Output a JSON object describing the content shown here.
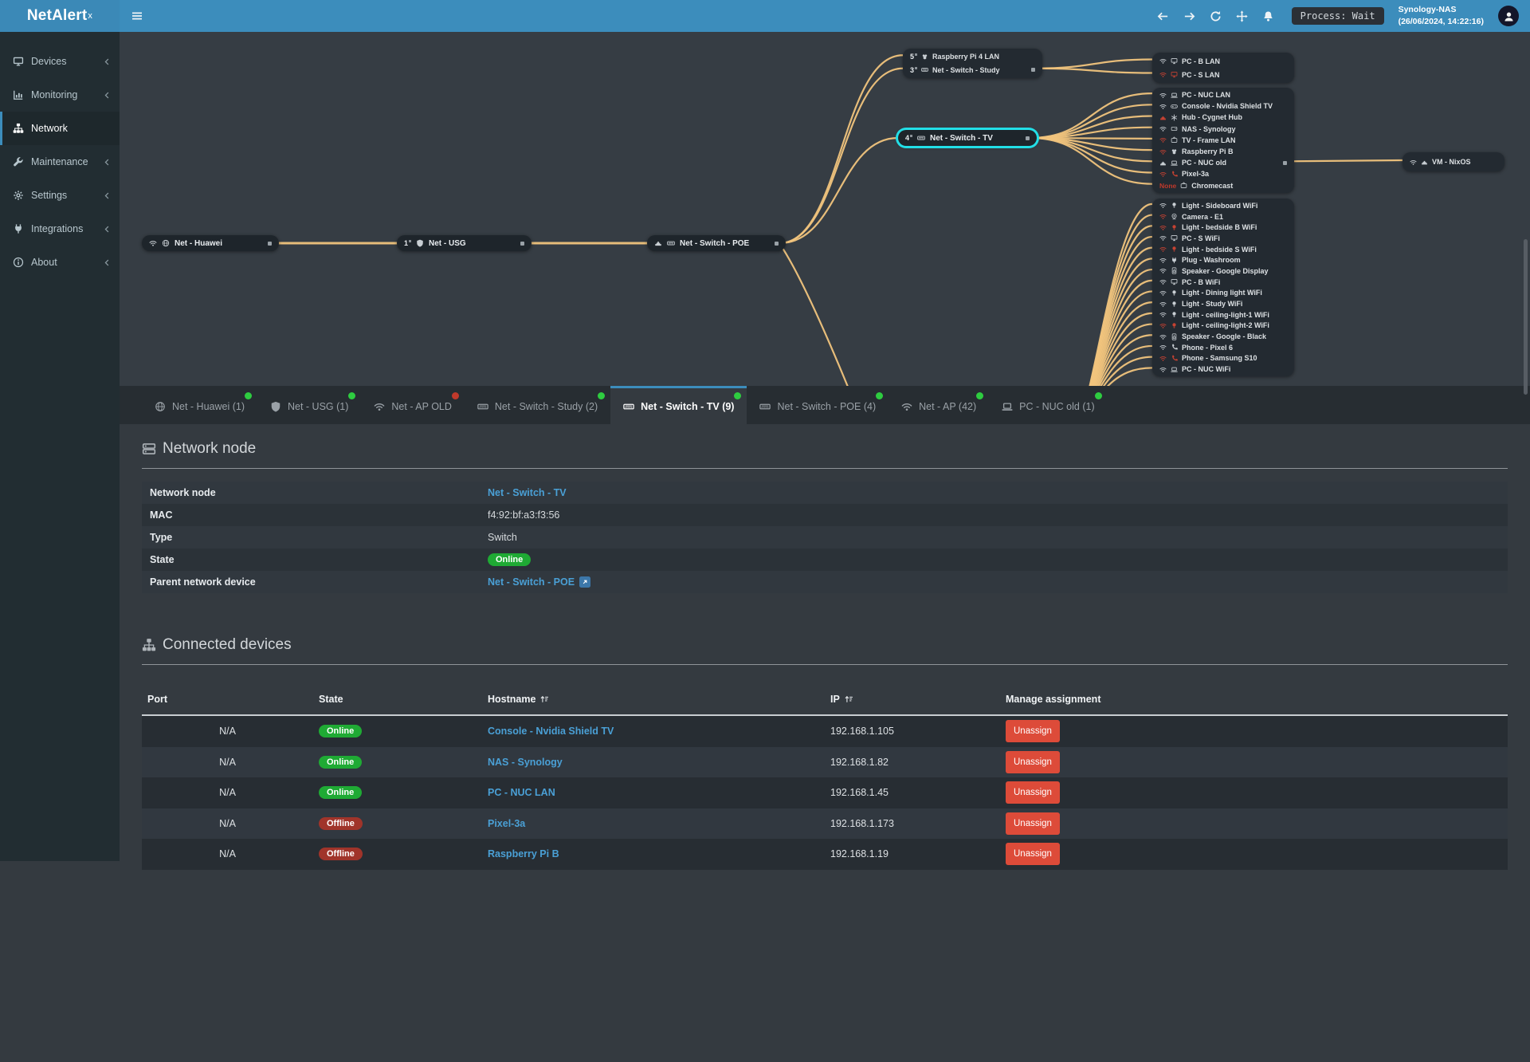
{
  "header": {
    "logo": {
      "text": "NetAlert",
      "sup": "x"
    },
    "nav_icons": [
      {
        "name": "arrow-left"
      },
      {
        "name": "arrow-right"
      },
      {
        "name": "refresh"
      },
      {
        "name": "move"
      },
      {
        "name": "bell"
      }
    ],
    "process_badge": "Process: Wait",
    "host": {
      "name": "Synology-NAS",
      "time": "(26/06/2024, 14:22:16)"
    }
  },
  "sidebar": {
    "items": [
      {
        "id": "devices",
        "label": "Devices",
        "icon": "monitor",
        "chevron": true,
        "active": false
      },
      {
        "id": "monitoring",
        "label": "Monitoring",
        "icon": "chart",
        "chevron": true,
        "active": false
      },
      {
        "id": "network",
        "label": "Network",
        "icon": "sitemap",
        "chevron": false,
        "active": true
      },
      {
        "id": "maintenance",
        "label": "Maintenance",
        "icon": "wrench",
        "chevron": true,
        "active": false
      },
      {
        "id": "settings",
        "label": "Settings",
        "icon": "gear",
        "chevron": true,
        "active": false
      },
      {
        "id": "integrations",
        "label": "Integrations",
        "icon": "plug",
        "chevron": true,
        "active": false
      },
      {
        "id": "about",
        "label": "About",
        "icon": "info",
        "chevron": true,
        "active": false
      }
    ]
  },
  "topology": {
    "nodes": [
      {
        "id": "huawei",
        "icons": [
          {
            "name": "wifi",
            "color": "white"
          },
          {
            "name": "globe",
            "color": "white"
          }
        ],
        "label": "Net - Huawei",
        "port_out": true,
        "highlight": false
      },
      {
        "id": "usg",
        "port_num": "1",
        "icons": [
          {
            "name": "shield",
            "color": "white"
          }
        ],
        "label": "Net - USG",
        "port_out": true,
        "highlight": false
      },
      {
        "id": "poe",
        "icons": [
          {
            "name": "ethernet",
            "color": "white"
          },
          {
            "name": "switch",
            "color": "white"
          }
        ],
        "label": "Net - Switch - POE",
        "port_out": true,
        "highlight": false
      },
      {
        "id": "tv",
        "port_num": "4",
        "icons": [
          {
            "name": "switch",
            "color": "white"
          }
        ],
        "label": "Net - Switch - TV",
        "port_out": true,
        "highlight": true
      }
    ],
    "clusters": [
      {
        "id": "study",
        "rows": [
          {
            "port_num": "5",
            "icons": [
              {
                "name": "raspberry",
                "color": "white"
              }
            ],
            "label": "Raspberry Pi 4 LAN"
          },
          {
            "port_num": "3",
            "icons": [
              {
                "name": "switch",
                "color": "white"
              }
            ],
            "label": "Net - Switch - Study",
            "port_out": true
          }
        ]
      },
      {
        "id": "pcbs",
        "rows": [
          {
            "icons": [
              {
                "name": "wifi",
                "color": "white"
              },
              {
                "name": "monitor",
                "color": "white"
              }
            ],
            "label": "PC - B LAN"
          },
          {
            "icons": [
              {
                "name": "wifi",
                "color": "red"
              },
              {
                "name": "monitor",
                "color": "red"
              }
            ],
            "label": "PC - S LAN"
          }
        ]
      },
      {
        "id": "tvkids",
        "rows": [
          {
            "icons": [
              {
                "name": "wifi",
                "color": "white"
              },
              {
                "name": "laptop",
                "color": "white"
              }
            ],
            "label": "PC - NUC LAN"
          },
          {
            "icons": [
              {
                "name": "wifi",
                "color": "white"
              },
              {
                "name": "gamepad",
                "color": "white"
              }
            ],
            "label": "Console - Nvidia Shield TV"
          },
          {
            "icons": [
              {
                "name": "ethernet",
                "color": "red"
              },
              {
                "name": "hub",
                "color": "white"
              }
            ],
            "label": "Hub - Cygnet Hub"
          },
          {
            "icons": [
              {
                "name": "wifi",
                "color": "white"
              },
              {
                "name": "nas",
                "color": "white"
              }
            ],
            "label": "NAS - Synology"
          },
          {
            "icons": [
              {
                "name": "wifi",
                "color": "red"
              },
              {
                "name": "tv",
                "color": "white"
              }
            ],
            "label": "TV - Frame LAN"
          },
          {
            "icons": [
              {
                "name": "wifi",
                "color": "red"
              },
              {
                "name": "raspberry",
                "color": "white"
              }
            ],
            "label": "Raspberry Pi B"
          },
          {
            "icons": [
              {
                "name": "ethernet",
                "color": "white"
              },
              {
                "name": "laptop",
                "color": "white"
              }
            ],
            "label": "PC - NUC old",
            "port_out": true
          },
          {
            "icons": [
              {
                "name": "wifi",
                "color": "red"
              },
              {
                "name": "phone",
                "color": "red"
              }
            ],
            "label": "Pixel-3a"
          },
          {
            "prefix": "None",
            "icons": [
              {
                "name": "tv",
                "color": "white"
              }
            ],
            "label": "Chromecast"
          }
        ]
      },
      {
        "id": "lights",
        "rows": [
          {
            "icons": [
              {
                "name": "wifi",
                "color": "white"
              },
              {
                "name": "bulb",
                "color": "white"
              }
            ],
            "label": "Light - Sideboard WiFi"
          },
          {
            "icons": [
              {
                "name": "wifi",
                "color": "red"
              },
              {
                "name": "camera",
                "color": "white"
              }
            ],
            "label": "Camera - E1"
          },
          {
            "icons": [
              {
                "name": "wifi",
                "color": "red"
              },
              {
                "name": "bulb",
                "color": "red"
              }
            ],
            "label": "Light - bedside B WiFi"
          },
          {
            "icons": [
              {
                "name": "wifi",
                "color": "white"
              },
              {
                "name": "monitor",
                "color": "white"
              }
            ],
            "label": "PC - S WiFi"
          },
          {
            "icons": [
              {
                "name": "wifi",
                "color": "red"
              },
              {
                "name": "bulb",
                "color": "red"
              }
            ],
            "label": "Light - bedside S WiFi"
          },
          {
            "icons": [
              {
                "name": "wifi",
                "color": "white"
              },
              {
                "name": "plug",
                "color": "white"
              }
            ],
            "label": "Plug - Washroom"
          },
          {
            "icons": [
              {
                "name": "wifi",
                "color": "white"
              },
              {
                "name": "speaker",
                "color": "white"
              }
            ],
            "label": "Speaker - Google Display"
          },
          {
            "icons": [
              {
                "name": "wifi",
                "color": "white"
              },
              {
                "name": "monitor",
                "color": "white"
              }
            ],
            "label": "PC - B WiFi"
          },
          {
            "icons": [
              {
                "name": "wifi",
                "color": "white"
              },
              {
                "name": "bulb",
                "color": "white"
              }
            ],
            "label": "Light - Dining light WiFi"
          },
          {
            "icons": [
              {
                "name": "wifi",
                "color": "white"
              },
              {
                "name": "bulb",
                "color": "white"
              }
            ],
            "label": "Light - Study WiFi"
          },
          {
            "icons": [
              {
                "name": "wifi",
                "color": "white"
              },
              {
                "name": "bulb",
                "color": "white"
              }
            ],
            "label": "Light - ceiling-light-1 WiFi"
          },
          {
            "icons": [
              {
                "name": "wifi",
                "color": "red"
              },
              {
                "name": "bulb",
                "color": "red"
              }
            ],
            "label": "Light - ceiling-light-2 WiFi"
          },
          {
            "icons": [
              {
                "name": "wifi",
                "color": "white"
              },
              {
                "name": "speaker",
                "color": "white"
              }
            ],
            "label": "Speaker - Google - Black"
          },
          {
            "icons": [
              {
                "name": "wifi",
                "color": "white"
              },
              {
                "name": "phone",
                "color": "white"
              }
            ],
            "label": "Phone - Pixel 6"
          },
          {
            "icons": [
              {
                "name": "wifi",
                "color": "red"
              },
              {
                "name": "phone",
                "color": "red"
              }
            ],
            "label": "Phone - Samsung S10"
          },
          {
            "icons": [
              {
                "name": "wifi",
                "color": "white"
              },
              {
                "name": "laptop",
                "color": "white"
              }
            ],
            "label": "PC - NUC WiFi"
          }
        ]
      },
      {
        "id": "vm",
        "rows": [
          {
            "icons": [
              {
                "name": "wifi",
                "color": "white"
              },
              {
                "name": "ethernet",
                "color": "white"
              }
            ],
            "label": "VM - NixOS"
          }
        ]
      }
    ]
  },
  "tabs": [
    {
      "icon": "globe",
      "label": "Net - Huawei (1)",
      "dot": "green",
      "active": false
    },
    {
      "icon": "shield",
      "label": "Net - USG (1)",
      "dot": "green",
      "active": false
    },
    {
      "icon": "wifi",
      "label": "Net - AP OLD",
      "dot": "red",
      "active": false
    },
    {
      "icon": "switch",
      "label": "Net - Switch - Study (2)",
      "dot": "green",
      "active": false
    },
    {
      "icon": "switch",
      "label": "Net - Switch - TV (9)",
      "dot": "green",
      "active": true
    },
    {
      "icon": "switch",
      "label": "Net - Switch - POE (4)",
      "dot": "green",
      "active": false
    },
    {
      "icon": "wifi",
      "label": "Net - AP (42)",
      "dot": "green",
      "active": false
    },
    {
      "icon": "laptop",
      "label": "PC - NUC old (1)",
      "dot": "green",
      "active": false
    }
  ],
  "network_node": {
    "title": "Network node",
    "rows": [
      {
        "label": "Network node",
        "value": "Net - Switch - TV",
        "type": "link"
      },
      {
        "label": "MAC",
        "value": "f4:92:bf:a3:f3:56",
        "type": "text"
      },
      {
        "label": "Type",
        "value": "Switch",
        "type": "text"
      },
      {
        "label": "State",
        "value": "Online",
        "type": "badge"
      },
      {
        "label": "Parent network device",
        "value": "Net - Switch - POE",
        "type": "link-ext"
      }
    ]
  },
  "connected_devices": {
    "title": "Connected devices",
    "columns": [
      {
        "label": "Port",
        "sortable": false
      },
      {
        "label": "State",
        "sortable": false
      },
      {
        "label": "Hostname",
        "sortable": true
      },
      {
        "label": "IP",
        "sortable": true
      },
      {
        "label": "Manage assignment",
        "sortable": false
      }
    ],
    "rows": [
      {
        "port": "N/A",
        "state": "Online",
        "hostname": "Console - Nvidia Shield TV",
        "ip": "192.168.1.105",
        "action": "Unassign"
      },
      {
        "port": "N/A",
        "state": "Online",
        "hostname": "NAS - Synology",
        "ip": "192.168.1.82",
        "action": "Unassign"
      },
      {
        "port": "N/A",
        "state": "Online",
        "hostname": "PC - NUC LAN",
        "ip": "192.168.1.45",
        "action": "Unassign"
      },
      {
        "port": "N/A",
        "state": "Offline",
        "hostname": "Pixel-3a",
        "ip": "192.168.1.173",
        "action": "Unassign"
      },
      {
        "port": "N/A",
        "state": "Offline",
        "hostname": "Raspberry Pi B",
        "ip": "192.168.1.19",
        "action": "Unassign"
      }
    ]
  },
  "colors": {
    "accent": "#3c8dbc",
    "link": "#4aa0d6",
    "online": "#1faa34",
    "offline": "#a0342a",
    "danger": "#dd4b39",
    "edge": "#f1c47d",
    "highlight": "#22dfe7",
    "dot_green": "#2ecc40",
    "dot_red": "#c0392b"
  }
}
